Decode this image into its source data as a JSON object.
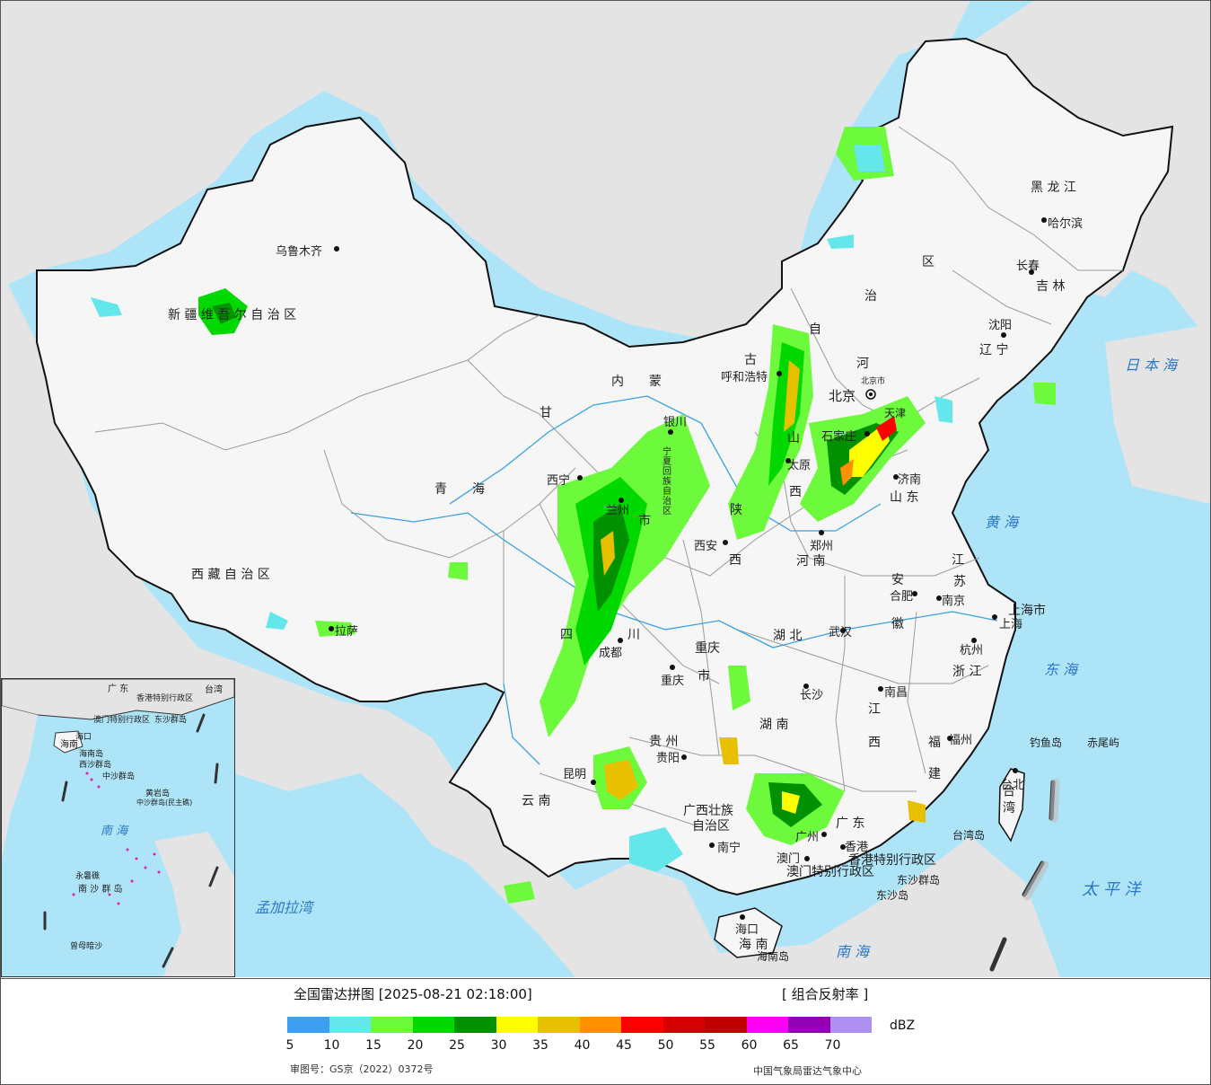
{
  "map": {
    "province_labels": [
      {
        "id": "xinjiang",
        "text": "新 疆 维 吾 尔 自 治 区"
      },
      {
        "id": "xizang",
        "text": "西 藏 自 治 区"
      },
      {
        "id": "qinghai",
        "text": "青　　海"
      },
      {
        "id": "gansu",
        "text": "甘"
      },
      {
        "id": "neimenggu",
        "text": "内　　蒙"
      },
      {
        "id": "gu",
        "text": "古"
      },
      {
        "id": "zi",
        "text": "自"
      },
      {
        "id": "zhi",
        "text": "治"
      },
      {
        "id": "qu",
        "text": "区"
      },
      {
        "id": "heilongjiang",
        "text": "黑 龙 江"
      },
      {
        "id": "jilin",
        "text": "吉 林"
      },
      {
        "id": "liaoning",
        "text": "辽 宁"
      },
      {
        "id": "hebei",
        "text": "河"
      },
      {
        "id": "shanxi1",
        "text": "山"
      },
      {
        "id": "shanxi2",
        "text": "西"
      },
      {
        "id": "shandong",
        "text": "山 东"
      },
      {
        "id": "henan",
        "text": "河 南"
      },
      {
        "id": "shaanxi1",
        "text": "陕"
      },
      {
        "id": "shaanxi2",
        "text": "西"
      },
      {
        "id": "sichuan1",
        "text": "四"
      },
      {
        "id": "sichuan2",
        "text": "川"
      },
      {
        "id": "chongqing",
        "text": "重庆"
      },
      {
        "id": "chongqing_shi",
        "text": "市"
      },
      {
        "id": "hubei",
        "text": "湖 北"
      },
      {
        "id": "hunan",
        "text": "湖 南"
      },
      {
        "id": "jiangxi1",
        "text": "江"
      },
      {
        "id": "jiangxi2",
        "text": "西"
      },
      {
        "id": "anhui1",
        "text": "安"
      },
      {
        "id": "anhui2",
        "text": "徽"
      },
      {
        "id": "jiangsu1",
        "text": "江"
      },
      {
        "id": "jiangsu2",
        "text": "苏"
      },
      {
        "id": "zhejiang",
        "text": "浙 江"
      },
      {
        "id": "fujian1",
        "text": "福"
      },
      {
        "id": "fujian2",
        "text": "建"
      },
      {
        "id": "guizhou",
        "text": "贵 州"
      },
      {
        "id": "yunnan",
        "text": "云 南"
      },
      {
        "id": "guangxi1",
        "text": "广西壮族"
      },
      {
        "id": "guangxi2",
        "text": "自治区"
      },
      {
        "id": "guangdong",
        "text": "广 东"
      },
      {
        "id": "hainan",
        "text": "海 南"
      },
      {
        "id": "taiwan",
        "text": "台 湾"
      },
      {
        "id": "shanghai",
        "text": "上海市"
      },
      {
        "id": "ningxia",
        "text": "宁夏回族自治区"
      },
      {
        "id": "tianjin",
        "text": "天津"
      },
      {
        "id": "ning_shi",
        "text": "市"
      },
      {
        "id": "ningxia_shi2",
        "text": "州"
      },
      {
        "id": "hongkong_sar",
        "text": "香港特别行政区"
      },
      {
        "id": "macau_sar",
        "text": "澳门特别行政区"
      }
    ],
    "cities": [
      {
        "id": "urumqi",
        "text": "乌鲁木齐"
      },
      {
        "id": "lhasa",
        "text": "拉萨"
      },
      {
        "id": "xining",
        "text": "西宁"
      },
      {
        "id": "lanzhou",
        "text": "兰州"
      },
      {
        "id": "yinchuan",
        "text": "银川"
      },
      {
        "id": "hohhot",
        "text": "呼和浩特"
      },
      {
        "id": "beijing",
        "text": "北京"
      },
      {
        "id": "beijing_shi",
        "text": "北京市"
      },
      {
        "id": "shijiazhuang",
        "text": "石家庄"
      },
      {
        "id": "taiyuan",
        "text": "太原"
      },
      {
        "id": "jinan",
        "text": "济南"
      },
      {
        "id": "zhengzhou",
        "text": "郑州"
      },
      {
        "id": "xian",
        "text": "西安"
      },
      {
        "id": "chengdu",
        "text": "成都"
      },
      {
        "id": "chongqing_c",
        "text": "重庆"
      },
      {
        "id": "wuhan",
        "text": "武汉"
      },
      {
        "id": "changsha",
        "text": "长沙"
      },
      {
        "id": "nanchang",
        "text": "南昌"
      },
      {
        "id": "hefei",
        "text": "合肥"
      },
      {
        "id": "nanjing",
        "text": "南京"
      },
      {
        "id": "shanghai_c",
        "text": "上海"
      },
      {
        "id": "hangzhou",
        "text": "杭州"
      },
      {
        "id": "fuzhou",
        "text": "福州"
      },
      {
        "id": "taibei",
        "text": "台北"
      },
      {
        "id": "guiyang",
        "text": "贵阳"
      },
      {
        "id": "kunming",
        "text": "昆明"
      },
      {
        "id": "nanning",
        "text": "南宁"
      },
      {
        "id": "guangzhou",
        "text": "广州"
      },
      {
        "id": "hongkong",
        "text": "香港"
      },
      {
        "id": "macau",
        "text": "澳门"
      },
      {
        "id": "haikou",
        "text": "海口"
      },
      {
        "id": "shenyang",
        "text": "沈阳"
      },
      {
        "id": "changchun",
        "text": "长春"
      },
      {
        "id": "harbin",
        "text": "哈尔滨"
      },
      {
        "id": "diaoyu",
        "text": "钓鱼岛"
      },
      {
        "id": "chiwei",
        "text": "赤尾屿"
      },
      {
        "id": "taiwan_island",
        "text": "台湾岛"
      },
      {
        "id": "dongsha_qundao",
        "text": "东沙群岛"
      },
      {
        "id": "dongsha_dao",
        "text": "东沙岛"
      },
      {
        "id": "hainan_island",
        "text": "海南岛"
      }
    ],
    "seas": [
      {
        "id": "japan_sea",
        "text": "日 本 海"
      },
      {
        "id": "yellow_sea",
        "text": "黄 海"
      },
      {
        "id": "east_sea",
        "text": "东 海"
      },
      {
        "id": "pacific",
        "text": "太 平 洋"
      },
      {
        "id": "south_sea",
        "text": "南 海"
      },
      {
        "id": "bengal",
        "text": "孟加拉湾"
      }
    ],
    "inset": {
      "labels": [
        "广 东",
        "台湾",
        "海南",
        "香港特别行政区",
        "澳门特别行政区",
        "东沙群岛",
        "海口",
        "海南岛",
        "西沙群岛",
        "中沙群岛",
        "黄岩岛",
        "南 海",
        "南 沙 群 岛",
        "永暑礁",
        "曾母暗沙",
        "中沙群岛(民主礁)"
      ]
    }
  },
  "legend": {
    "title": "全国雷达拼图 [2025-08-21 02:18:00]",
    "product": "[ 组合反射率 ]",
    "unit": "dBZ",
    "colors": [
      "#3e9ef0",
      "#64e7eb",
      "#6dfa3d",
      "#00d800",
      "#019000",
      "#ffff00",
      "#e7c000",
      "#ff9000",
      "#ff0000",
      "#d60000",
      "#c00000",
      "#ff00f0",
      "#9600b4",
      "#ad90f0"
    ],
    "ticks": [
      "5",
      "10",
      "15",
      "20",
      "25",
      "30",
      "35",
      "40",
      "45",
      "50",
      "55",
      "60",
      "65",
      "70"
    ],
    "approval": "审图号：GS京（2022）0372号",
    "source": "中国气象局雷达气象中心"
  }
}
